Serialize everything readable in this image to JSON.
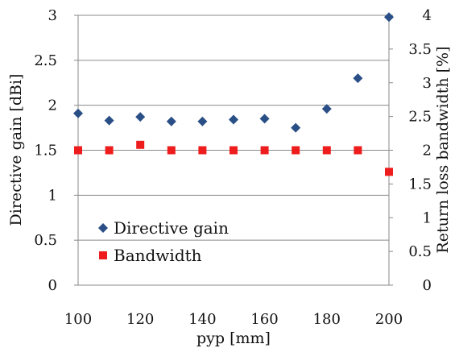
{
  "chart_data": {
    "type": "scatter",
    "x": [
      100,
      110,
      120,
      130,
      140,
      150,
      160,
      170,
      180,
      190,
      200
    ],
    "xlabel": "pyp [mm]",
    "xlim": [
      100,
      200
    ],
    "xticks": [
      "100",
      "120",
      "140",
      "160",
      "180",
      "200"
    ],
    "y_left": {
      "label": "Directive gain [dBi]",
      "lim": [
        0,
        3
      ],
      "ticks": [
        "0",
        "0.5",
        "1",
        "1.5",
        "2",
        "2.5",
        "3"
      ]
    },
    "y_right": {
      "label": "Return loss bandwidth [%]",
      "lim": [
        0,
        4
      ],
      "ticks": [
        "0",
        "0.5",
        "1",
        "1.5",
        "2",
        "2.5",
        "3",
        "3.5",
        "4"
      ]
    },
    "series": [
      {
        "name": "Directive gain",
        "axis": "left",
        "marker": "diamond",
        "color": "#2a4f86",
        "values": [
          1.91,
          1.83,
          1.87,
          1.82,
          1.82,
          1.84,
          1.85,
          1.75,
          1.96,
          2.3,
          2.98
        ]
      },
      {
        "name": "Bandwidth",
        "axis": "right",
        "marker": "square",
        "color": "#ee1c1c",
        "values": [
          2.0,
          2.0,
          2.08,
          2.0,
          2.0,
          2.0,
          2.0,
          2.0,
          2.0,
          2.0,
          1.68
        ]
      }
    ],
    "grid": "horizontal",
    "legend": "bottom-left"
  }
}
